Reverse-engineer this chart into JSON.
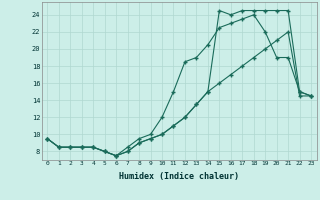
{
  "xlabel": "Humidex (Indice chaleur)",
  "bg_color": "#cceee8",
  "line_color": "#1a6b5a",
  "grid_color": "#b0d8d0",
  "xlim": [
    -0.5,
    23.5
  ],
  "ylim": [
    7.0,
    25.5
  ],
  "xticks": [
    0,
    1,
    2,
    3,
    4,
    5,
    6,
    7,
    8,
    9,
    10,
    11,
    12,
    13,
    14,
    15,
    16,
    17,
    18,
    19,
    20,
    21,
    22,
    23
  ],
  "yticks": [
    8,
    10,
    12,
    14,
    16,
    18,
    20,
    22,
    24
  ],
  "line1_x": [
    0,
    1,
    2,
    3,
    4,
    5,
    6,
    7,
    8,
    9,
    10,
    11,
    12,
    13,
    14,
    15,
    16,
    17,
    18,
    19,
    20,
    21,
    22,
    23
  ],
  "line1_y": [
    9.5,
    8.5,
    8.5,
    8.5,
    8.5,
    8.0,
    7.5,
    8.0,
    9.0,
    9.5,
    10.0,
    11.0,
    12.0,
    13.5,
    15.0,
    24.5,
    24.0,
    24.5,
    24.5,
    24.5,
    24.5,
    24.5,
    15.0,
    14.5
  ],
  "line2_x": [
    0,
    1,
    2,
    3,
    4,
    5,
    6,
    7,
    8,
    9,
    10,
    11,
    12,
    13,
    14,
    15,
    16,
    17,
    18,
    19,
    20,
    21,
    22,
    23
  ],
  "line2_y": [
    9.5,
    8.5,
    8.5,
    8.5,
    8.5,
    8.0,
    7.5,
    8.5,
    9.5,
    10.0,
    12.0,
    15.0,
    18.5,
    19.0,
    20.5,
    22.5,
    23.0,
    23.5,
    24.0,
    22.0,
    19.0,
    19.0,
    15.0,
    14.5
  ],
  "line3_x": [
    0,
    1,
    2,
    3,
    4,
    5,
    6,
    7,
    8,
    9,
    10,
    11,
    12,
    13,
    14,
    15,
    16,
    17,
    18,
    19,
    20,
    21,
    22,
    23
  ],
  "line3_y": [
    9.5,
    8.5,
    8.5,
    8.5,
    8.5,
    8.0,
    7.5,
    8.0,
    9.0,
    9.5,
    10.0,
    11.0,
    12.0,
    13.5,
    15.0,
    16.0,
    17.0,
    18.0,
    19.0,
    20.0,
    21.0,
    22.0,
    14.5,
    14.5
  ]
}
